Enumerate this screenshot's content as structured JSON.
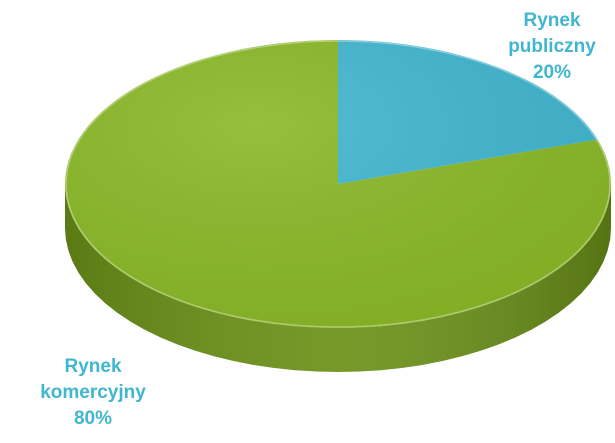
{
  "chart_data": {
    "type": "pie",
    "style": "3d",
    "title": "",
    "slices": [
      {
        "name_lines": [
          "Rynek",
          "publiczny"
        ],
        "percent_label": "20%",
        "value": 20,
        "color": "#41b6cf",
        "side_color": "#2f95ab"
      },
      {
        "name_lines": [
          "Rynek",
          "komercyjny"
        ],
        "percent_label": "80%",
        "value": 80,
        "color": "#8ab827",
        "side_color": "#6a9017"
      }
    ],
    "label_color": "#41b6cf",
    "legend": "none"
  }
}
